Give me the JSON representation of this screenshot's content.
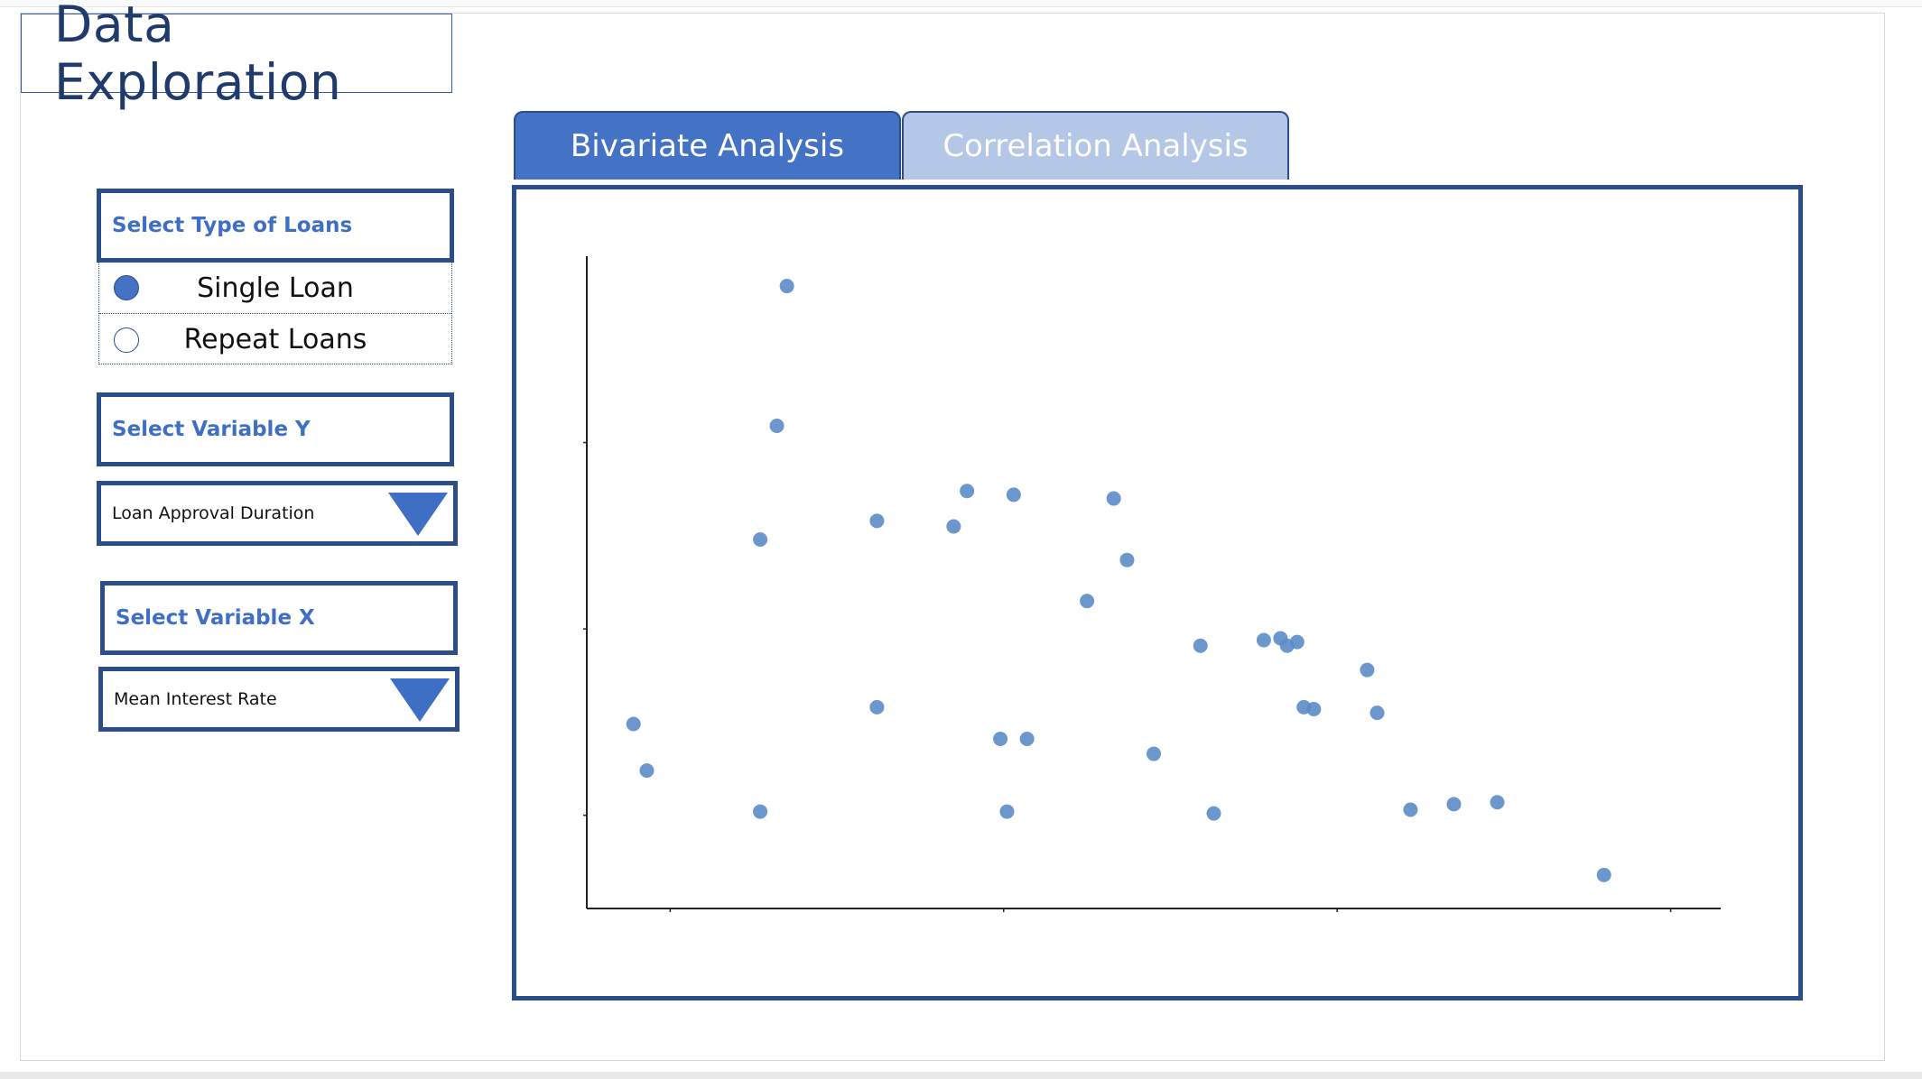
{
  "title": "Data Exploration",
  "tabs": [
    {
      "label": "Bivariate Analysis",
      "active": true
    },
    {
      "label": "Correlation Analysis",
      "active": false
    }
  ],
  "loan_type": {
    "label": "Select Type of Loans",
    "options": [
      {
        "label": "Single Loan",
        "selected": true
      },
      {
        "label": "Repeat Loans",
        "selected": false
      }
    ]
  },
  "variable_y": {
    "label": "Select Variable Y",
    "value": "Loan Approval Duration"
  },
  "variable_x": {
    "label": "Select Variable X",
    "value": "Mean Interest Rate"
  },
  "colors": {
    "accent": "#4472c4",
    "border": "#2b4d8c",
    "tab_inactive": "#b4c7e7",
    "point": "#5b8cc8"
  },
  "chart_data": {
    "type": "scatter",
    "title": "",
    "xlabel": "",
    "ylabel": "",
    "xlim": [
      0.75,
      4.15
    ],
    "ylim": [
      0.5,
      4.0
    ],
    "x_ticks": [
      1,
      2,
      3,
      4
    ],
    "y_ticks": [
      1,
      2,
      3
    ],
    "grid": false,
    "series": [
      {
        "points": [
          [
            1.35,
            3.84
          ],
          [
            1.32,
            3.09
          ],
          [
            1.27,
            2.48
          ],
          [
            1.27,
            1.02
          ],
          [
            0.93,
            1.24
          ],
          [
            0.89,
            1.49
          ],
          [
            1.62,
            2.58
          ],
          [
            1.62,
            1.58
          ],
          [
            1.85,
            2.55
          ],
          [
            1.89,
            2.74
          ],
          [
            2.03,
            2.72
          ],
          [
            2.33,
            2.7
          ],
          [
            2.37,
            2.37
          ],
          [
            2.25,
            2.15
          ],
          [
            2.07,
            1.41
          ],
          [
            1.99,
            1.41
          ],
          [
            2.01,
            1.02
          ],
          [
            2.45,
            1.33
          ],
          [
            2.59,
            1.91
          ],
          [
            2.63,
            1.01
          ],
          [
            2.78,
            1.94
          ],
          [
            2.83,
            1.95
          ],
          [
            2.88,
            1.93
          ],
          [
            2.85,
            1.91
          ],
          [
            2.9,
            1.58
          ],
          [
            2.93,
            1.57
          ],
          [
            3.09,
            1.78
          ],
          [
            3.12,
            1.55
          ],
          [
            3.22,
            1.03
          ],
          [
            3.35,
            1.06
          ],
          [
            3.48,
            1.07
          ],
          [
            3.8,
            0.68
          ]
        ]
      }
    ]
  }
}
